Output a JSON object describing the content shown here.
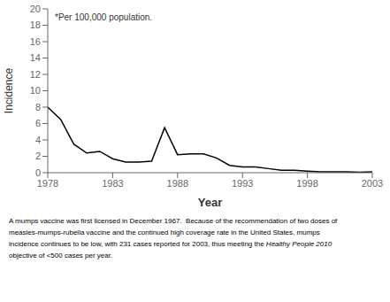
{
  "chart_data": {
    "type": "line",
    "x": [
      1978,
      1979,
      1980,
      1981,
      1982,
      1983,
      1984,
      1985,
      1986,
      1987,
      1988,
      1989,
      1990,
      1991,
      1992,
      1993,
      1994,
      1995,
      1996,
      1997,
      1998,
      1999,
      2000,
      2001,
      2002,
      2003
    ],
    "values": [
      8.0,
      6.5,
      3.5,
      2.4,
      2.6,
      1.7,
      1.3,
      1.3,
      1.4,
      5.5,
      2.2,
      2.3,
      2.3,
      1.8,
      0.9,
      0.7,
      0.7,
      0.5,
      0.3,
      0.3,
      0.2,
      0.1,
      0.1,
      0.1,
      0.05,
      0.1
    ],
    "color": "#000000",
    "ylabel": "Incidence",
    "xlabel": "Year",
    "annotation": "*Per 100,000 population.",
    "ylim": [
      0,
      20
    ],
    "yticks": [
      0,
      2,
      4,
      6,
      8,
      10,
      12,
      14,
      16,
      18,
      20
    ],
    "xlim": [
      1978,
      2003
    ],
    "xticks": [
      1978,
      1983,
      1988,
      1993,
      1998,
      2003
    ],
    "grid": false,
    "caption": [
      [
        "A mumps vaccine was first licensed in December 1967.  Because of the recommendation of two doses of"
      ],
      [
        "measles-mumps-rubella vaccine and the continued high coverage rate in the United States, mumps"
      ],
      [
        "incidence continues to be low, with 231 cases reported for 2003, thus meeting the ",
        "Healthy People 2010"
      ],
      [
        "objective of <500 cases per year."
      ]
    ]
  }
}
